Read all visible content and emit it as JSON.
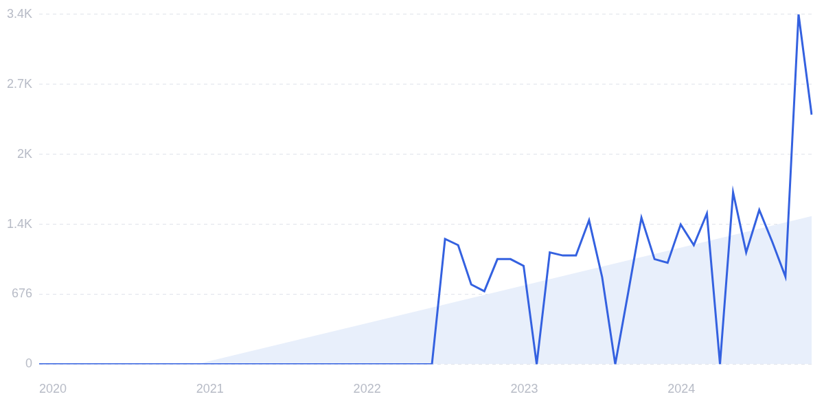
{
  "chart_data": {
    "type": "line",
    "categories": [
      "2020",
      null,
      null,
      null,
      null,
      null,
      null,
      null,
      null,
      null,
      null,
      null,
      "2021",
      null,
      null,
      null,
      null,
      null,
      null,
      null,
      null,
      null,
      null,
      null,
      "2022",
      null,
      null,
      null,
      null,
      null,
      null,
      null,
      null,
      null,
      null,
      null,
      "2023",
      null,
      null,
      null,
      null,
      null,
      null,
      null,
      null,
      null,
      null,
      null,
      "2024",
      null,
      null,
      null,
      null,
      null,
      null,
      null,
      null,
      null,
      null,
      null
    ],
    "series": [
      {
        "color": "#3461e0",
        "values": [
          0,
          0,
          0,
          0,
          0,
          0,
          0,
          0,
          0,
          0,
          0,
          0,
          0,
          0,
          0,
          0,
          0,
          0,
          0,
          0,
          0,
          0,
          0,
          0,
          0,
          0,
          0,
          0,
          0,
          0,
          0,
          1210,
          1150,
          770,
          705,
          1015,
          1015,
          950,
          0,
          1080,
          1050,
          1050,
          1390,
          840,
          0,
          700,
          1415,
          1015,
          980,
          1350,
          1150,
          1455,
          0,
          1660,
          1080,
          1490,
          1180,
          845,
          3380,
          2410
        ]
      },
      {
        "type": "area",
        "color": "#e8effb",
        "values": [
          null,
          null,
          null,
          null,
          null,
          null,
          null,
          null,
          null,
          null,
          null,
          null,
          0,
          null,
          null,
          null,
          null,
          null,
          null,
          null,
          null,
          null,
          null,
          null,
          null,
          null,
          null,
          null,
          null,
          null,
          null,
          null,
          null,
          null,
          null,
          null,
          null,
          null,
          null,
          null,
          null,
          null,
          null,
          null,
          null,
          null,
          null,
          null,
          null,
          null,
          null,
          null,
          null,
          null,
          null,
          null,
          null,
          null,
          null,
          1430
        ]
      }
    ],
    "ylim": [
      0,
      3380
    ],
    "yticks": [
      0,
      676,
      {
        "value": 1352,
        "label": "1.4K"
      },
      {
        "value": 2028,
        "label": "2K"
      },
      {
        "value": 2704,
        "label": "2.7K"
      },
      {
        "value": 3380,
        "label": "3.4K"
      }
    ],
    "grid": true
  }
}
